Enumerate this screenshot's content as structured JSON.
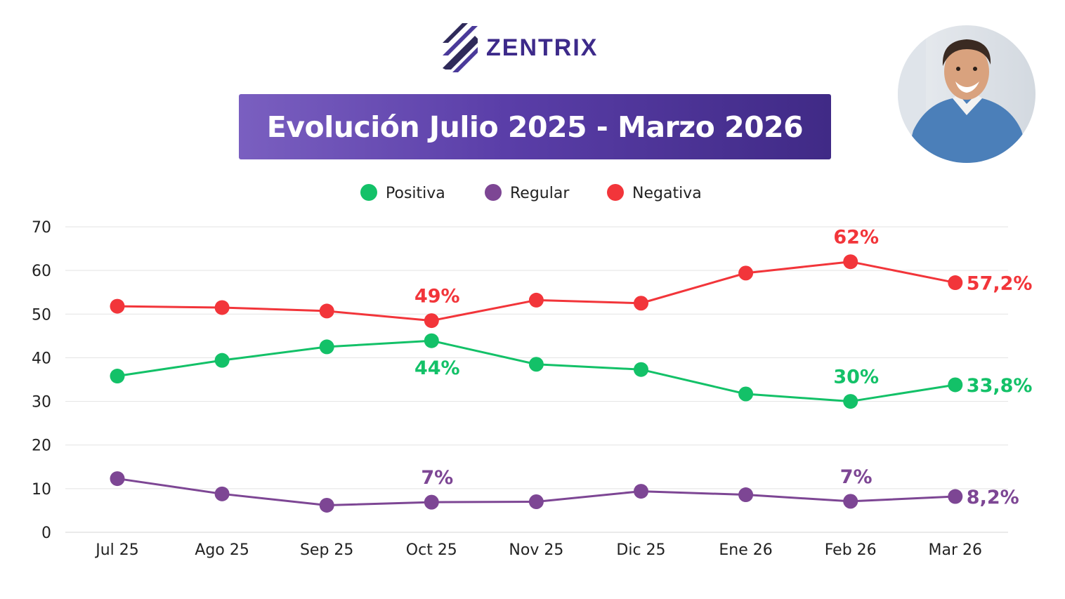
{
  "brand": {
    "name": "ZENTRIX"
  },
  "colors": {
    "positiva": "#13c168",
    "regular": "#7d4694",
    "negativa": "#f2353a"
  },
  "chart_data": {
    "type": "line",
    "title": "Evolución Julio 2025 - Marzo 2026",
    "xlabel": "",
    "ylabel": "",
    "ylim": [
      0,
      70
    ],
    "yticks": [
      0,
      10,
      20,
      30,
      40,
      50,
      60,
      70
    ],
    "grid": true,
    "legend": "top-center",
    "categories": [
      "Jul 25",
      "Ago 25",
      "Sep 25",
      "Oct 25",
      "Nov 25",
      "Dic 25",
      "Ene 26",
      "Feb 26",
      "Mar 26"
    ],
    "series": [
      {
        "name": "Positiva",
        "key": "positiva",
        "values": [
          35.8,
          39.4,
          42.5,
          43.9,
          38.5,
          37.3,
          31.7,
          30.0,
          33.8
        ],
        "labels": [
          {
            "index": 3,
            "text": "44%",
            "pos": "below"
          },
          {
            "index": 7,
            "text": "30%",
            "pos": "above"
          },
          {
            "index": 8,
            "text": "33,8%",
            "pos": "right"
          }
        ]
      },
      {
        "name": "Regular",
        "key": "regular",
        "values": [
          12.3,
          8.8,
          6.2,
          6.9,
          7.0,
          9.4,
          8.6,
          7.1,
          8.2
        ],
        "labels": [
          {
            "index": 3,
            "text": "7%",
            "pos": "above"
          },
          {
            "index": 7,
            "text": "7%",
            "pos": "above"
          },
          {
            "index": 8,
            "text": "8,2%",
            "pos": "right"
          }
        ]
      },
      {
        "name": "Negativa",
        "key": "negativa",
        "values": [
          51.8,
          51.5,
          50.7,
          48.5,
          53.2,
          52.5,
          59.4,
          62.0,
          57.2
        ],
        "labels": [
          {
            "index": 3,
            "text": "49%",
            "pos": "above"
          },
          {
            "index": 7,
            "text": "62%",
            "pos": "above"
          },
          {
            "index": 8,
            "text": "57,2%",
            "pos": "right"
          }
        ]
      }
    ]
  }
}
